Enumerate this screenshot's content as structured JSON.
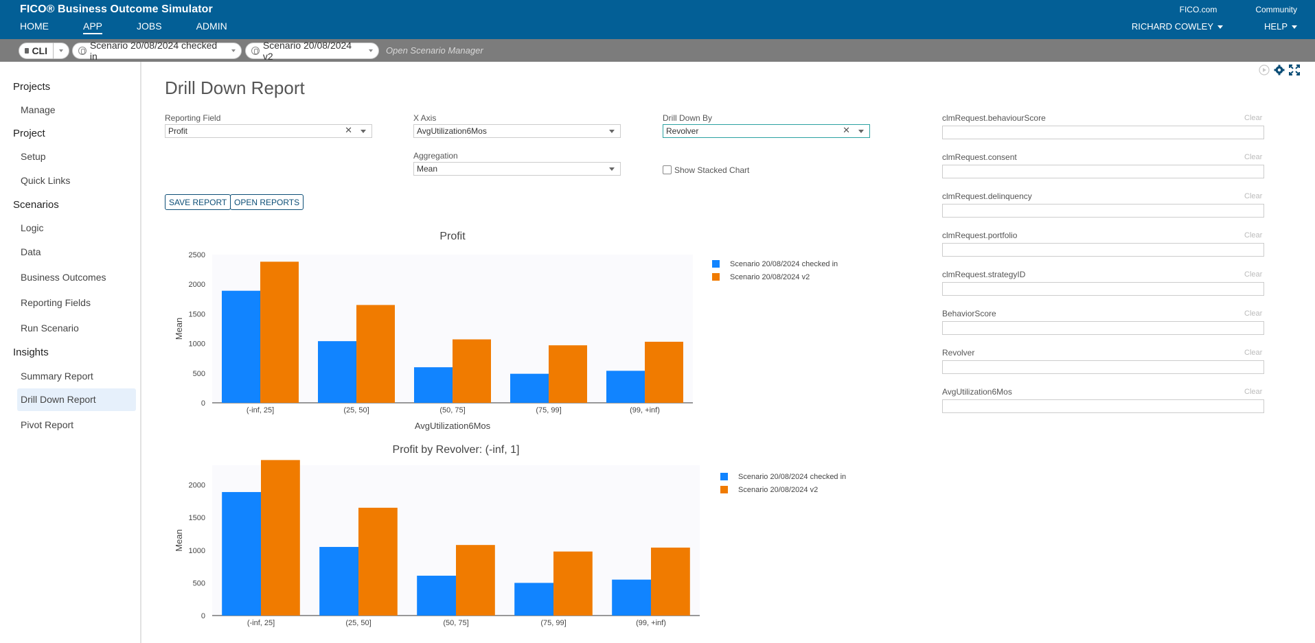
{
  "header": {
    "app_title": "FICO® Business Outcome Simulator",
    "nav": [
      "HOME",
      "APP",
      "JOBS",
      "ADMIN"
    ],
    "active_nav": "APP",
    "links": [
      "FICO.com",
      "Community"
    ],
    "user": "RICHARD COWLEY",
    "help": "HELP"
  },
  "scenario_bar": {
    "cli": "CLI",
    "scenario1": "Scenario 20/08/2024 checked in",
    "scenario2": "Scenario 20/08/2024 v2",
    "open_manager": "Open Scenario Manager"
  },
  "sidebar": {
    "sections": [
      {
        "heading": "Projects",
        "items": [
          "Manage"
        ]
      },
      {
        "heading": "Project",
        "items": [
          "Setup",
          "Quick Links"
        ]
      },
      {
        "heading": "Scenarios",
        "items": [
          "Logic",
          "Data",
          "Business Outcomes",
          "Reporting Fields",
          "Run Scenario"
        ]
      },
      {
        "heading": "Insights",
        "items": [
          "Summary Report",
          "Drill Down Report",
          "Pivot Report"
        ]
      }
    ],
    "active": "Drill Down Report"
  },
  "page": {
    "title": "Drill Down Report",
    "reporting_field_label": "Reporting Field",
    "reporting_field_value": "Profit",
    "x_axis_label": "X Axis",
    "x_axis_value": "AvgUtilization6Mos",
    "drill_label": "Drill Down By",
    "drill_value": "Revolver",
    "aggregation_label": "Aggregation",
    "aggregation_value": "Mean",
    "stacked_label": "Show Stacked Chart",
    "save_button": "SAVE REPORT",
    "open_button": "OPEN REPORTS"
  },
  "filters": {
    "clear_label": "Clear",
    "items": [
      "clmRequest.behaviourScore",
      "clmRequest.consent",
      "clmRequest.delinquency",
      "clmRequest.portfolio",
      "clmRequest.strategyID",
      "BehaviorScore",
      "Revolver",
      "AvgUtilization6Mos"
    ]
  },
  "colors": {
    "series1": "#1184ff",
    "series2": "#f07b00",
    "header": "#035f96"
  },
  "chart_data": [
    {
      "type": "bar",
      "title": "Profit",
      "xlabel": "AvgUtilization6Mos",
      "ylabel": "Mean",
      "categories": [
        "(-inf, 25]",
        "(25, 50]",
        "(50, 75]",
        "(75, 99]",
        "(99, +inf)"
      ],
      "yticks": [
        0,
        500,
        1000,
        1500,
        2000,
        2500
      ],
      "ylim": [
        0,
        2500
      ],
      "series": [
        {
          "name": "Scenario 20/08/2024 checked in",
          "values": [
            1890,
            1040,
            600,
            490,
            540
          ]
        },
        {
          "name": "Scenario 20/08/2024 v2",
          "values": [
            2380,
            1650,
            1070,
            970,
            1030
          ]
        }
      ],
      "legend": "right"
    },
    {
      "type": "bar",
      "title": "Profit by Revolver: (-inf, 1]",
      "xlabel": "",
      "ylabel": "Mean",
      "categories": [
        "(-inf, 25]",
        "(25, 50]",
        "(50, 75]",
        "(75, 99]",
        "(99, +inf)"
      ],
      "yticks": [
        0,
        500,
        1000,
        1500,
        2000
      ],
      "ylim": [
        0,
        2300
      ],
      "series": [
        {
          "name": "Scenario 20/08/2024 checked in",
          "values": [
            1890,
            1050,
            610,
            500,
            550
          ]
        },
        {
          "name": "Scenario 20/08/2024 v2",
          "values": [
            2380,
            1650,
            1080,
            980,
            1040
          ]
        }
      ],
      "legend": "right"
    }
  ]
}
